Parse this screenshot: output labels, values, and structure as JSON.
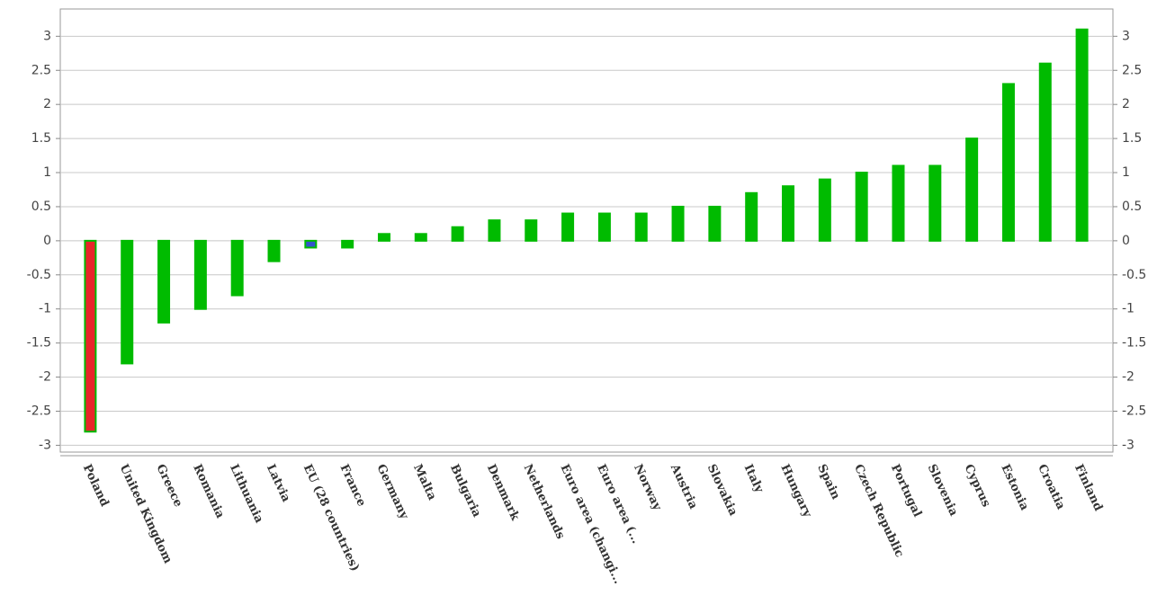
{
  "chart_data": {
    "type": "bar",
    "categories": [
      "Poland",
      "United Kingdom",
      "Greece",
      "Romania",
      "Lithuania",
      "Latvia",
      "EU (28 countries)",
      "France",
      "Germany",
      "Malta",
      "Bulgaria",
      "Denmark",
      "Netherlands",
      "Euro area (changi...",
      "Euro area (...",
      "Norway",
      "Austria",
      "Slovakia",
      "Italy",
      "Hungary",
      "Spain",
      "Czech Republic",
      "Portugal",
      "Slovenia",
      "Cyprus",
      "Estonia",
      "Croatia",
      "Finland"
    ],
    "values": [
      -2.8,
      -1.8,
      -1.2,
      -1.0,
      -0.8,
      -0.3,
      -0.1,
      -0.1,
      0.1,
      0.1,
      0.2,
      0.3,
      0.3,
      0.4,
      0.4,
      0.4,
      0.5,
      0.5,
      0.7,
      0.8,
      0.9,
      1.0,
      1.1,
      1.1,
      1.5,
      2.3,
      2.6,
      3.1
    ],
    "colors": [
      "#e8262a",
      "#00bb00",
      "#00bb00",
      "#00bb00",
      "#00bb00",
      "#00bb00",
      "#3355cc",
      "#00bb00",
      "#00bb00",
      "#00bb00",
      "#00bb00",
      "#00bb00",
      "#00bb00",
      "#00bb00",
      "#00bb00",
      "#00bb00",
      "#00bb00",
      "#00bb00",
      "#00bb00",
      "#00bb00",
      "#00bb00",
      "#00bb00",
      "#00bb00",
      "#00bb00",
      "#00bb00",
      "#00bb00",
      "#00bb00",
      "#00bb00"
    ],
    "border_color": "#00bb00",
    "ylim": [
      -3.1,
      3.4
    ],
    "yticks": [
      -3,
      -2.5,
      -2,
      -1.5,
      -1,
      -0.5,
      0,
      0.5,
      1,
      1.5,
      2,
      2.5,
      3
    ],
    "grid": true
  }
}
